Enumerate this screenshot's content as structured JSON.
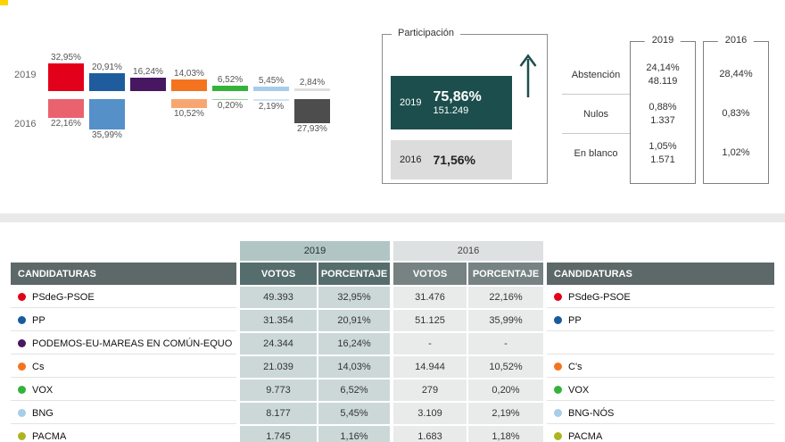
{
  "colors": {
    "accent_dark_teal": "#1d4e4e",
    "band_2019": "#b1c5c5",
    "band_2016": "#dde1e1",
    "cell_2019": "#ccd8d8",
    "cell_2016": "#e9ebeb"
  },
  "chart_data": {
    "type": "bar",
    "title": "",
    "unit": "percent",
    "row_labels": [
      "2019",
      "2016"
    ],
    "legend_position": "left",
    "columns": [
      {
        "v2019": 32.95,
        "l2019": "32,95%",
        "c2019": "#e2001a",
        "v2016": 22.16,
        "l2016": "22,16%",
        "c2016": "#e9626d"
      },
      {
        "v2019": 20.91,
        "l2019": "20,91%",
        "c2019": "#1f5c9e",
        "v2016": 35.99,
        "l2016": "35,99%",
        "c2016": "#5590c9"
      },
      {
        "v2019": 16.24,
        "l2019": "16,24%",
        "c2019": "#471761",
        "v2016": null,
        "l2016": null,
        "c2016": null
      },
      {
        "v2019": 14.03,
        "l2019": "14,03%",
        "c2019": "#f4731f",
        "v2016": 10.52,
        "l2016": "10,52%",
        "c2016": "#f8a671"
      },
      {
        "v2019": 6.52,
        "l2019": "6,52%",
        "c2019": "#33b33a",
        "v2016": 0.2,
        "l2016": "0,20%",
        "c2016": "#8fd694"
      },
      {
        "v2019": 5.45,
        "l2019": "5,45%",
        "c2019": "#a6cdea",
        "v2016": 2.19,
        "l2016": "2,19%",
        "c2016": "#cfe4f4"
      },
      {
        "v2019": 2.84,
        "l2019": "2,84%",
        "c2019": "#dedede",
        "v2016": 27.93,
        "l2016": "27,93%",
        "c2016": "#4d4d4d"
      }
    ]
  },
  "participation": {
    "title": "Participación",
    "trend_icon": "arrow-up",
    "y2019": {
      "year": "2019",
      "pct": "75,86%",
      "votes": "151.249"
    },
    "y2016": {
      "year": "2016",
      "pct": "71,56%"
    }
  },
  "summary": {
    "col2019": "2019",
    "col2016": "2016",
    "rows": [
      {
        "label": "Abstención",
        "pct2019": "24,14%",
        "votes2019": "48.119",
        "pct2016": "28,44%"
      },
      {
        "label": "Nulos",
        "pct2019": "0,88%",
        "votes2019": "1.337",
        "pct2016": "0,83%"
      },
      {
        "label": "En blanco",
        "pct2019": "1,05%",
        "votes2019": "1.571",
        "pct2016": "1,02%"
      }
    ]
  },
  "results_table": {
    "headers": {
      "group_2019": "2019",
      "group_2016": "2016",
      "candidaturas_left": "CANDIDATURAS",
      "votos_2019": "VOTOS",
      "porcentaje_2019": "PORCENTAJE",
      "votos_2016": "VOTOS",
      "porcentaje_2016": "PORCENTAJE",
      "candidaturas_right": "CANDIDATURAS"
    },
    "rows": [
      {
        "name": "PSdeG-PSOE",
        "color": "#e2001a",
        "votos2019": "49.393",
        "pct2019": "32,95%",
        "votos2016": "31.476",
        "pct2016": "22,16%",
        "name2016": "PSdeG-PSOE",
        "color2016": "#e2001a"
      },
      {
        "name": "PP",
        "color": "#1a5a9e",
        "votos2019": "31.354",
        "pct2019": "20,91%",
        "votos2016": "51.125",
        "pct2016": "35,99%",
        "name2016": "PP",
        "color2016": "#1a5a9e"
      },
      {
        "name": "PODEMOS-EU-MAREAS EN COMÚN-EQUO",
        "color": "#471761",
        "votos2019": "24.344",
        "pct2019": "16,24%",
        "votos2016": "-",
        "pct2016": "-",
        "name2016": "",
        "color2016": null
      },
      {
        "name": "Cs",
        "color": "#f4731f",
        "votos2019": "21.039",
        "pct2019": "14,03%",
        "votos2016": "14.944",
        "pct2016": "10,52%",
        "name2016": "C's",
        "color2016": "#f4731f"
      },
      {
        "name": "VOX",
        "color": "#33b33a",
        "votos2019": "9.773",
        "pct2019": "6,52%",
        "votos2016": "279",
        "pct2016": "0,20%",
        "name2016": "VOX",
        "color2016": "#33b33a"
      },
      {
        "name": "BNG",
        "color": "#a6cdea",
        "votos2019": "8.177",
        "pct2019": "5,45%",
        "votos2016": "3.109",
        "pct2016": "2,19%",
        "name2016": "BNG-NÓS",
        "color2016": "#a6cdea"
      },
      {
        "name": "PACMA",
        "color": "#adb41f",
        "votos2019": "1.745",
        "pct2019": "1,16%",
        "votos2016": "1.683",
        "pct2016": "1,18%",
        "name2016": "PACMA",
        "color2016": "#adb41f"
      }
    ]
  }
}
